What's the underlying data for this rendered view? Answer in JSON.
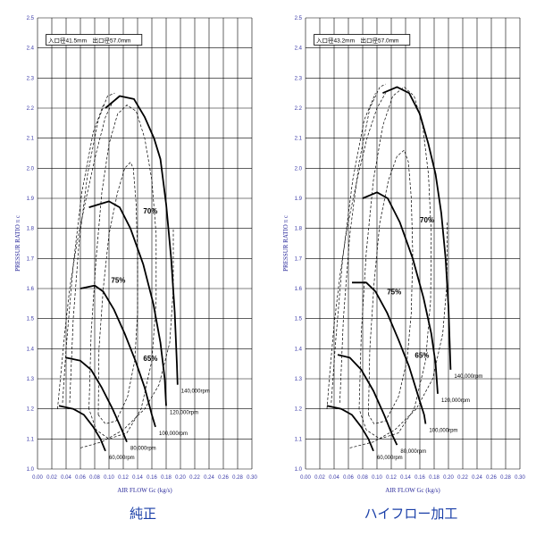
{
  "chart_data": [
    {
      "type": "line",
      "caption": "純正",
      "spec_box": "入口径41.5mm　出口径57.0mm",
      "xlabel": "AIR FLOW Gc (kg/s)",
      "ylabel": "PRESSUR RATIO π c",
      "xlim": [
        0.0,
        0.3
      ],
      "ylim": [
        1.0,
        2.5
      ],
      "x_ticks": [
        "0.00",
        "0.02",
        "0.04",
        "0.06",
        "0.08",
        "0.10",
        "0.12",
        "0.14",
        "0.16",
        "0.18",
        "0.20",
        "0.22",
        "0.24",
        "0.26",
        "0.28",
        "0.30"
      ],
      "y_ticks": [
        "1.0",
        "1.1",
        "1.2",
        "1.3",
        "1.4",
        "1.5",
        "1.6",
        "1.7",
        "1.8",
        "1.9",
        "2.0",
        "2.1",
        "2.2",
        "2.3",
        "2.4",
        "2.5"
      ],
      "grid": true,
      "speed_lines": [
        {
          "label": "60,000rpm",
          "points": [
            [
              0.03,
              1.21
            ],
            [
              0.05,
              1.2
            ],
            [
              0.065,
              1.18
            ],
            [
              0.078,
              1.14
            ],
            [
              0.088,
              1.1
            ],
            [
              0.095,
              1.06
            ]
          ]
        },
        {
          "label": "80,000rpm",
          "points": [
            [
              0.04,
              1.37
            ],
            [
              0.06,
              1.36
            ],
            [
              0.075,
              1.33
            ],
            [
              0.09,
              1.27
            ],
            [
              0.105,
              1.2
            ],
            [
              0.118,
              1.13
            ],
            [
              0.125,
              1.09
            ]
          ]
        },
        {
          "label": "100,000rpm",
          "points": [
            [
              0.06,
              1.6
            ],
            [
              0.08,
              1.61
            ],
            [
              0.092,
              1.59
            ],
            [
              0.107,
              1.53
            ],
            [
              0.122,
              1.45
            ],
            [
              0.137,
              1.36
            ],
            [
              0.15,
              1.27
            ],
            [
              0.16,
              1.18
            ],
            [
              0.165,
              1.14
            ]
          ]
        },
        {
          "label": "120,000rpm",
          "points": [
            [
              0.072,
              1.87
            ],
            [
              0.1,
              1.89
            ],
            [
              0.115,
              1.87
            ],
            [
              0.13,
              1.8
            ],
            [
              0.148,
              1.68
            ],
            [
              0.162,
              1.55
            ],
            [
              0.172,
              1.42
            ],
            [
              0.178,
              1.3
            ],
            [
              0.18,
              1.21
            ]
          ]
        },
        {
          "label": "140,000rpm",
          "points": [
            [
              0.095,
              2.2
            ],
            [
              0.115,
              2.24
            ],
            [
              0.135,
              2.23
            ],
            [
              0.15,
              2.17
            ],
            [
              0.163,
              2.1
            ],
            [
              0.172,
              2.03
            ],
            [
              0.18,
              1.88
            ],
            [
              0.187,
              1.7
            ],
            [
              0.192,
              1.52
            ],
            [
              0.195,
              1.35
            ],
            [
              0.196,
              1.28
            ]
          ]
        }
      ],
      "efficiency_labels": [
        "70%",
        "75%",
        "65%"
      ],
      "efficiency_islands": [
        {
          "label": "75%",
          "points": [
            [
              0.085,
              1.18
            ],
            [
              0.086,
              1.4
            ],
            [
              0.092,
              1.6
            ],
            [
              0.1,
              1.78
            ],
            [
              0.112,
              1.92
            ],
            [
              0.122,
              2.0
            ],
            [
              0.13,
              2.02
            ],
            [
              0.134,
              2.0
            ],
            [
              0.138,
              1.88
            ],
            [
              0.14,
              1.7
            ],
            [
              0.14,
              1.52
            ],
            [
              0.136,
              1.36
            ],
            [
              0.126,
              1.24
            ],
            [
              0.11,
              1.16
            ],
            [
              0.095,
              1.15
            ],
            [
              0.085,
              1.18
            ]
          ]
        },
        {
          "label": "70%",
          "points": [
            [
              0.072,
              1.2
            ],
            [
              0.075,
              1.45
            ],
            [
              0.082,
              1.7
            ],
            [
              0.09,
              1.92
            ],
            [
              0.1,
              2.08
            ],
            [
              0.112,
              2.18
            ],
            [
              0.125,
              2.21
            ],
            [
              0.138,
              2.19
            ],
            [
              0.15,
              2.1
            ],
            [
              0.16,
              1.96
            ],
            [
              0.166,
              1.78
            ],
            [
              0.166,
              1.56
            ],
            [
              0.16,
              1.36
            ],
            [
              0.145,
              1.2
            ],
            [
              0.125,
              1.12
            ],
            [
              0.1,
              1.1
            ],
            [
              0.082,
              1.13
            ],
            [
              0.072,
              1.2
            ]
          ]
        },
        {
          "label": "65%",
          "points": [
            [
              0.045,
              1.22
            ],
            [
              0.05,
              1.5
            ],
            [
              0.058,
              1.75
            ],
            [
              0.07,
              1.98
            ],
            [
              0.085,
              2.16
            ],
            [
              0.098,
              2.24
            ],
            [
              0.108,
              2.25
            ]
          ]
        },
        {
          "label": "",
          "points": [
            [
              0.035,
              1.22
            ],
            [
              0.04,
              1.4
            ],
            [
              0.05,
              1.68
            ],
            [
              0.062,
              1.92
            ],
            [
              0.078,
              2.12
            ],
            [
              0.092,
              2.21
            ]
          ]
        },
        {
          "label": "",
          "points": [
            [
              0.06,
              1.07
            ],
            [
              0.09,
              1.09
            ],
            [
              0.12,
              1.13
            ],
            [
              0.15,
              1.2
            ],
            [
              0.17,
              1.28
            ],
            [
              0.185,
              1.42
            ],
            [
              0.19,
              1.6
            ],
            [
              0.19,
              1.8
            ]
          ]
        }
      ],
      "surge_line": [
        [
          0.028,
          1.2
        ],
        [
          0.032,
          1.3
        ],
        [
          0.038,
          1.45
        ],
        [
          0.045,
          1.6
        ],
        [
          0.055,
          1.75
        ],
        [
          0.068,
          1.9
        ],
        [
          0.082,
          2.05
        ],
        [
          0.095,
          2.17
        ],
        [
          0.105,
          2.22
        ]
      ]
    },
    {
      "type": "line",
      "caption": "ハイフロー加工",
      "spec_box": "入口径43.2mm　出口径57.0mm",
      "xlabel": "AIR FLOW Gc (kg/s)",
      "ylabel": "PRESSUR RATIO π c",
      "xlim": [
        0.0,
        0.3
      ],
      "ylim": [
        1.0,
        2.5
      ],
      "x_ticks": [
        "0.00",
        "0.02",
        "0.04",
        "0.06",
        "0.08",
        "0.10",
        "0.12",
        "0.14",
        "0.16",
        "0.18",
        "0.20",
        "0.22",
        "0.24",
        "0.26",
        "0.28",
        "0.30"
      ],
      "y_ticks": [
        "1.0",
        "1.1",
        "1.2",
        "1.3",
        "1.4",
        "1.5",
        "1.6",
        "1.7",
        "1.8",
        "1.9",
        "2.0",
        "2.1",
        "2.2",
        "2.3",
        "2.4",
        "2.5"
      ],
      "grid": true,
      "speed_lines": [
        {
          "label": "60,000rpm",
          "points": [
            [
              0.03,
              1.21
            ],
            [
              0.05,
              1.2
            ],
            [
              0.065,
              1.18
            ],
            [
              0.078,
              1.14
            ],
            [
              0.088,
              1.1
            ],
            [
              0.095,
              1.06
            ]
          ]
        },
        {
          "label": "80,000rpm",
          "points": [
            [
              0.045,
              1.38
            ],
            [
              0.062,
              1.37
            ],
            [
              0.078,
              1.33
            ],
            [
              0.095,
              1.26
            ],
            [
              0.11,
              1.18
            ],
            [
              0.122,
              1.11
            ],
            [
              0.128,
              1.08
            ]
          ]
        },
        {
          "label": "100,000rpm",
          "points": [
            [
              0.065,
              1.62
            ],
            [
              0.085,
              1.62
            ],
            [
              0.098,
              1.59
            ],
            [
              0.114,
              1.52
            ],
            [
              0.13,
              1.43
            ],
            [
              0.145,
              1.34
            ],
            [
              0.158,
              1.24
            ],
            [
              0.166,
              1.18
            ],
            [
              0.168,
              1.15
            ]
          ]
        },
        {
          "label": "120,000rpm",
          "points": [
            [
              0.08,
              1.9
            ],
            [
              0.1,
              1.92
            ],
            [
              0.115,
              1.9
            ],
            [
              0.132,
              1.82
            ],
            [
              0.15,
              1.7
            ],
            [
              0.165,
              1.57
            ],
            [
              0.176,
              1.45
            ],
            [
              0.182,
              1.35
            ],
            [
              0.185,
              1.25
            ]
          ]
        },
        {
          "label": "140,000rpm",
          "points": [
            [
              0.108,
              2.25
            ],
            [
              0.128,
              2.27
            ],
            [
              0.145,
              2.25
            ],
            [
              0.16,
              2.18
            ],
            [
              0.172,
              2.08
            ],
            [
              0.182,
              1.98
            ],
            [
              0.19,
              1.85
            ],
            [
              0.196,
              1.7
            ],
            [
              0.2,
              1.54
            ],
            [
              0.202,
              1.4
            ],
            [
              0.203,
              1.33
            ]
          ]
        }
      ],
      "efficiency_labels": [
        "70%",
        "75%",
        "65%"
      ],
      "efficiency_islands": [
        {
          "label": "75%",
          "points": [
            [
              0.088,
              1.18
            ],
            [
              0.09,
              1.4
            ],
            [
              0.096,
              1.62
            ],
            [
              0.104,
              1.82
            ],
            [
              0.116,
              1.96
            ],
            [
              0.128,
              2.04
            ],
            [
              0.138,
              2.06
            ],
            [
              0.144,
              2.02
            ],
            [
              0.148,
              1.9
            ],
            [
              0.15,
              1.72
            ],
            [
              0.148,
              1.52
            ],
            [
              0.142,
              1.36
            ],
            [
              0.13,
              1.24
            ],
            [
              0.112,
              1.16
            ],
            [
              0.096,
              1.15
            ],
            [
              0.088,
              1.18
            ]
          ]
        },
        {
          "label": "70%",
          "points": [
            [
              0.075,
              1.2
            ],
            [
              0.078,
              1.45
            ],
            [
              0.085,
              1.72
            ],
            [
              0.095,
              1.96
            ],
            [
              0.108,
              2.14
            ],
            [
              0.122,
              2.24
            ],
            [
              0.138,
              2.27
            ],
            [
              0.152,
              2.24
            ],
            [
              0.164,
              2.14
            ],
            [
              0.172,
              1.98
            ],
            [
              0.176,
              1.78
            ],
            [
              0.175,
              1.56
            ],
            [
              0.168,
              1.36
            ],
            [
              0.152,
              1.2
            ],
            [
              0.13,
              1.12
            ],
            [
              0.104,
              1.1
            ],
            [
              0.085,
              1.13
            ],
            [
              0.075,
              1.2
            ]
          ]
        },
        {
          "label": "65%",
          "points": [
            [
              0.048,
              1.22
            ],
            [
              0.053,
              1.5
            ],
            [
              0.062,
              1.78
            ],
            [
              0.075,
              2.02
            ],
            [
              0.09,
              2.2
            ],
            [
              0.104,
              2.27
            ],
            [
              0.112,
              2.28
            ]
          ]
        },
        {
          "label": "",
          "points": [
            [
              0.036,
              1.22
            ],
            [
              0.042,
              1.42
            ],
            [
              0.052,
              1.7
            ],
            [
              0.066,
              1.96
            ],
            [
              0.082,
              2.16
            ],
            [
              0.098,
              2.25
            ]
          ]
        },
        {
          "label": "",
          "points": [
            [
              0.062,
              1.07
            ],
            [
              0.095,
              1.09
            ],
            [
              0.125,
              1.13
            ],
            [
              0.155,
              1.2
            ],
            [
              0.178,
              1.3
            ],
            [
              0.192,
              1.45
            ],
            [
              0.198,
              1.62
            ],
            [
              0.198,
              1.82
            ]
          ]
        }
      ],
      "surge_line": [
        [
          0.03,
          1.2
        ],
        [
          0.034,
          1.32
        ],
        [
          0.04,
          1.48
        ],
        [
          0.048,
          1.64
        ],
        [
          0.058,
          1.8
        ],
        [
          0.072,
          1.96
        ],
        [
          0.086,
          2.1
        ],
        [
          0.1,
          2.2
        ],
        [
          0.112,
          2.25
        ]
      ]
    }
  ]
}
